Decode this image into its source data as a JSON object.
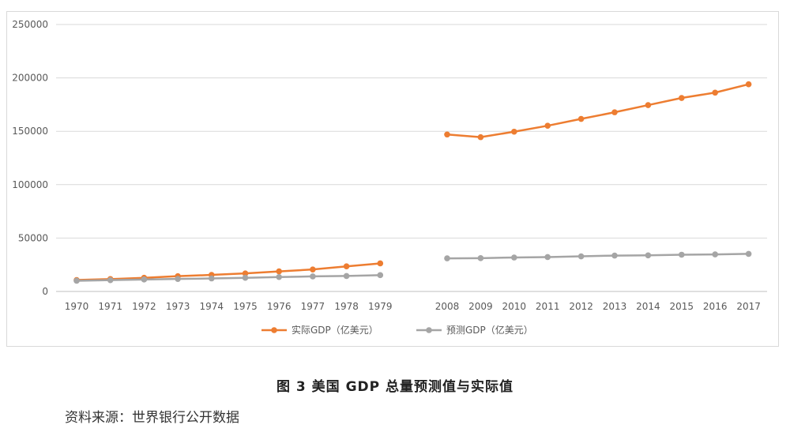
{
  "chart_data": {
    "type": "line",
    "title": "",
    "xlabel": "",
    "ylabel": "",
    "ylim": [
      0,
      250000
    ],
    "yticks": [
      "0",
      "50000",
      "100000",
      "150000",
      "200000",
      "250000"
    ],
    "grid": true,
    "legend_position": "bottom",
    "categories": [
      "1970",
      "1971",
      "1972",
      "1973",
      "1974",
      "1975",
      "1976",
      "1977",
      "1978",
      "1979",
      "2008",
      "2009",
      "2010",
      "2011",
      "2012",
      "2013",
      "2014",
      "2015",
      "2016",
      "2017"
    ],
    "series": [
      {
        "name": "实际GDP（亿美元）",
        "color": "#ED7D31",
        "values": [
          10700,
          11600,
          12800,
          14300,
          15500,
          16900,
          18800,
          20600,
          23500,
          26300,
          147000,
          144500,
          149600,
          155200,
          161600,
          167800,
          174500,
          181200,
          186200,
          194000
        ]
      },
      {
        "name": "预测GDP（亿美元）",
        "color": "#A5A5A5",
        "values": [
          10000,
          10600,
          11200,
          11700,
          12200,
          12800,
          13500,
          14100,
          14500,
          15300,
          31000,
          31200,
          31800,
          32200,
          32900,
          33600,
          33800,
          34400,
          34700,
          35200
        ]
      }
    ]
  },
  "caption": "图 3 美国 GDP 总量预测值与实际值",
  "source": "资料来源：世界银行公开数据"
}
